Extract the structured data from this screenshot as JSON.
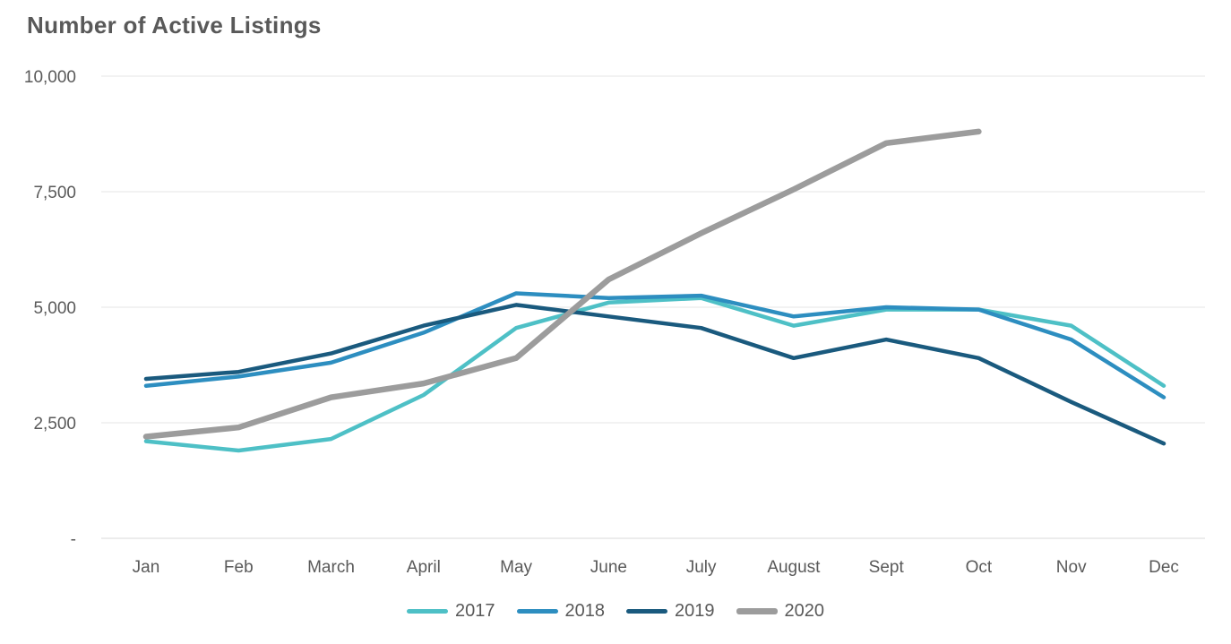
{
  "colors": {
    "background": "#FFFFFF",
    "text": "#595959",
    "grid_line": "#E6E6E6",
    "axis_line": "#D9D9D9"
  },
  "chart_data": {
    "type": "line",
    "title": "Number of Active Listings",
    "xlabel": "",
    "ylabel": "",
    "grid": true,
    "legend_position": "bottom",
    "categories": [
      "Jan",
      "Feb",
      "March",
      "April",
      "May",
      "June",
      "July",
      "August",
      "Sept",
      "Oct",
      "Nov",
      "Dec"
    ],
    "y_axis": {
      "min": 0,
      "max": 10000,
      "tick_values": [
        10000,
        7500,
        5000,
        2500,
        0
      ],
      "tick_labels": [
        "10,000",
        "7,500",
        "5,000",
        "2,500",
        "-"
      ]
    },
    "series": [
      {
        "name": "2017",
        "color": "#4EC0C6",
        "stroke_width": 4.5,
        "values": [
          2100,
          1900,
          2150,
          3100,
          4550,
          5100,
          5200,
          4600,
          4950,
          4950,
          4600,
          3300
        ]
      },
      {
        "name": "2018",
        "color": "#2D8EC0",
        "stroke_width": 4.5,
        "values": [
          3300,
          3500,
          3800,
          4450,
          5300,
          5200,
          5250,
          4800,
          5000,
          4950,
          4300,
          3050
        ]
      },
      {
        "name": "2019",
        "color": "#1A5A7E",
        "stroke_width": 4.5,
        "values": [
          3450,
          3600,
          4000,
          4600,
          5050,
          4800,
          4550,
          3900,
          4300,
          3900,
          2950,
          2050
        ]
      },
      {
        "name": "2020",
        "color": "#9C9C9C",
        "stroke_width": 6.5,
        "values": [
          2200,
          2400,
          3050,
          3350,
          3900,
          5600,
          6600,
          7550,
          8550,
          8800,
          null,
          null
        ]
      }
    ]
  }
}
